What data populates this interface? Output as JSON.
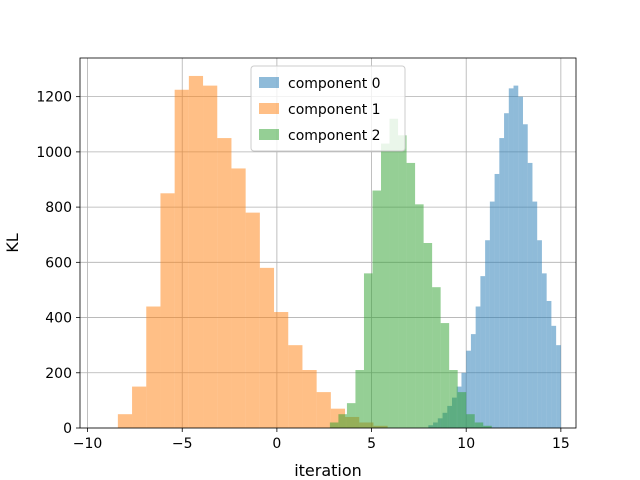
{
  "chart_data": {
    "type": "histogram",
    "title": "",
    "xlabel": "iteration",
    "ylabel": "KL",
    "xlim": [
      -10.4,
      15.8
    ],
    "ylim": [
      0,
      1340
    ],
    "xticks": [
      -10,
      -5,
      0,
      5,
      10,
      15
    ],
    "yticks": [
      0,
      200,
      400,
      600,
      800,
      1000,
      1200
    ],
    "grid": true,
    "legend_position": "top-center",
    "series": [
      {
        "name": "component 0",
        "color": "#1f77b4",
        "opacity": 0.5,
        "bin_width": 0.25,
        "bins": [
          [
            8.0,
            10
          ],
          [
            8.25,
            20
          ],
          [
            8.5,
            35
          ],
          [
            8.75,
            55
          ],
          [
            9.0,
            80
          ],
          [
            9.25,
            110
          ],
          [
            9.5,
            150
          ],
          [
            9.75,
            200
          ],
          [
            10.0,
            280
          ],
          [
            10.25,
            340
          ],
          [
            10.5,
            440
          ],
          [
            10.75,
            550
          ],
          [
            11.0,
            680
          ],
          [
            11.25,
            820
          ],
          [
            11.5,
            920
          ],
          [
            11.75,
            1050
          ],
          [
            12.0,
            1140
          ],
          [
            12.25,
            1230
          ],
          [
            12.5,
            1240
          ],
          [
            12.75,
            1200
          ],
          [
            13.0,
            1100
          ],
          [
            13.25,
            960
          ],
          [
            13.5,
            820
          ],
          [
            13.75,
            680
          ],
          [
            14.0,
            560
          ],
          [
            14.25,
            460
          ],
          [
            14.5,
            370
          ],
          [
            14.75,
            300
          ]
        ]
      },
      {
        "name": "component 1",
        "color": "#ff7f0e",
        "opacity": 0.5,
        "bin_width": 0.75,
        "bins": [
          [
            -8.4,
            50
          ],
          [
            -7.65,
            150
          ],
          [
            -6.9,
            440
          ],
          [
            -6.15,
            850
          ],
          [
            -5.4,
            1225
          ],
          [
            -4.65,
            1275
          ],
          [
            -3.9,
            1240
          ],
          [
            -3.15,
            1050
          ],
          [
            -2.4,
            940
          ],
          [
            -1.65,
            780
          ],
          [
            -0.9,
            580
          ],
          [
            -0.15,
            420
          ],
          [
            0.6,
            300
          ],
          [
            1.35,
            210
          ],
          [
            2.1,
            130
          ],
          [
            2.85,
            70
          ],
          [
            3.6,
            40
          ],
          [
            4.35,
            20
          ],
          [
            5.1,
            8
          ]
        ]
      },
      {
        "name": "component 2",
        "color": "#2ca02c",
        "opacity": 0.5,
        "bin_width": 0.45,
        "bins": [
          [
            2.8,
            20
          ],
          [
            3.25,
            50
          ],
          [
            3.7,
            90
          ],
          [
            4.15,
            210
          ],
          [
            4.6,
            560
          ],
          [
            5.05,
            860
          ],
          [
            5.5,
            1030
          ],
          [
            5.95,
            1120
          ],
          [
            6.4,
            1060
          ],
          [
            6.85,
            960
          ],
          [
            7.3,
            810
          ],
          [
            7.75,
            670
          ],
          [
            8.2,
            510
          ],
          [
            8.65,
            380
          ],
          [
            9.1,
            210
          ],
          [
            9.55,
            130
          ],
          [
            10.0,
            50
          ],
          [
            10.45,
            20
          ],
          [
            10.9,
            8
          ]
        ]
      }
    ]
  }
}
